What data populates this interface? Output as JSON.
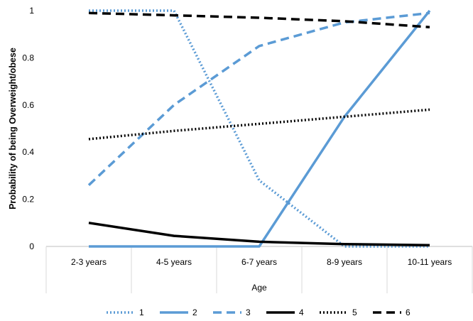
{
  "chart_data": {
    "type": "line",
    "title": "",
    "xlabel": "Age",
    "ylabel": "Probability of being Overweight/obese",
    "categories": [
      "2-3 years",
      "4-5 years",
      "6-7 years",
      "8-9 years",
      "10-11 years"
    ],
    "ylim": [
      0,
      1
    ],
    "yticks": [
      "0",
      "0.2",
      "0.4",
      "0.6",
      "0.8",
      "1"
    ],
    "grid": false,
    "legend_position": "bottom",
    "series": [
      {
        "name": "1",
        "values": [
          1.0,
          1.0,
          0.28,
          0.0,
          0.0
        ],
        "color": "#5b9bd5",
        "style": "dotted"
      },
      {
        "name": "2",
        "values": [
          0.0,
          0.0,
          0.0,
          0.55,
          1.0
        ],
        "color": "#5b9bd5",
        "style": "solid"
      },
      {
        "name": "3",
        "values": [
          0.26,
          0.6,
          0.85,
          0.95,
          0.99
        ],
        "color": "#5b9bd5",
        "style": "dashed"
      },
      {
        "name": "4",
        "values": [
          0.1,
          0.045,
          0.02,
          0.01,
          0.005
        ],
        "color": "#000000",
        "style": "solid"
      },
      {
        "name": "5",
        "values": [
          0.455,
          0.49,
          0.52,
          0.55,
          0.58
        ],
        "color": "#000000",
        "style": "dotted"
      },
      {
        "name": "6",
        "values": [
          0.99,
          0.98,
          0.97,
          0.955,
          0.93
        ],
        "color": "#000000",
        "style": "dashed"
      }
    ]
  }
}
